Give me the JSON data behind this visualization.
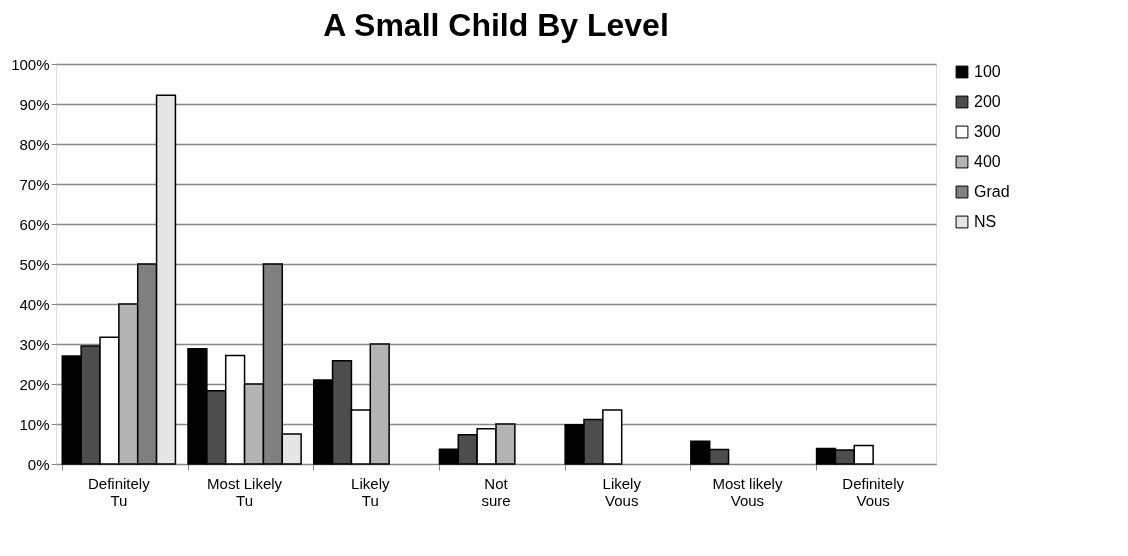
{
  "chart_data": {
    "type": "bar",
    "title": "A Small Child By Level",
    "categories": [
      "Definitely Tu",
      "Most Likely Tu",
      "Likely Tu",
      "Not sure",
      "Likely Vous",
      "Most likely Vous",
      "Definitely Vous"
    ],
    "series": [
      {
        "name": "100",
        "color": "#000000",
        "values": [
          27,
          28.8,
          21,
          3.7,
          9.8,
          5.7,
          3.9
        ]
      },
      {
        "name": "200",
        "color": "#4d4d4d",
        "values": [
          29.5,
          18.3,
          25.8,
          7.3,
          11.1,
          3.6,
          3.5
        ]
      },
      {
        "name": "300",
        "color": "#ffffff",
        "values": [
          31.7,
          27.1,
          13.5,
          8.8,
          13.5,
          null,
          4.6
        ]
      },
      {
        "name": "400",
        "color": "#b3b3b3",
        "values": [
          40,
          20,
          30,
          10,
          null,
          null,
          null
        ]
      },
      {
        "name": "Grad",
        "color": "#808080",
        "values": [
          50,
          50,
          null,
          null,
          null,
          null,
          null
        ]
      },
      {
        "name": "NS",
        "color": "#e6e6e6",
        "values": [
          92.2,
          7.5,
          null,
          null,
          null,
          null,
          null
        ]
      }
    ],
    "ylim": [
      0,
      100
    ],
    "yticks": [
      {
        "value": 0,
        "label": "0%"
      },
      {
        "value": 10,
        "label": "10%"
      },
      {
        "value": 20,
        "label": "20%"
      },
      {
        "value": 30,
        "label": "30%"
      },
      {
        "value": 40,
        "label": "40%"
      },
      {
        "value": 50,
        "label": "50%"
      },
      {
        "value": 60,
        "label": "60%"
      },
      {
        "value": 70,
        "label": "70%"
      },
      {
        "value": 80,
        "label": "80%"
      },
      {
        "value": 90,
        "label": "90%"
      },
      {
        "value": 100,
        "label": "100%"
      }
    ],
    "grid": "y",
    "legend": "right"
  }
}
